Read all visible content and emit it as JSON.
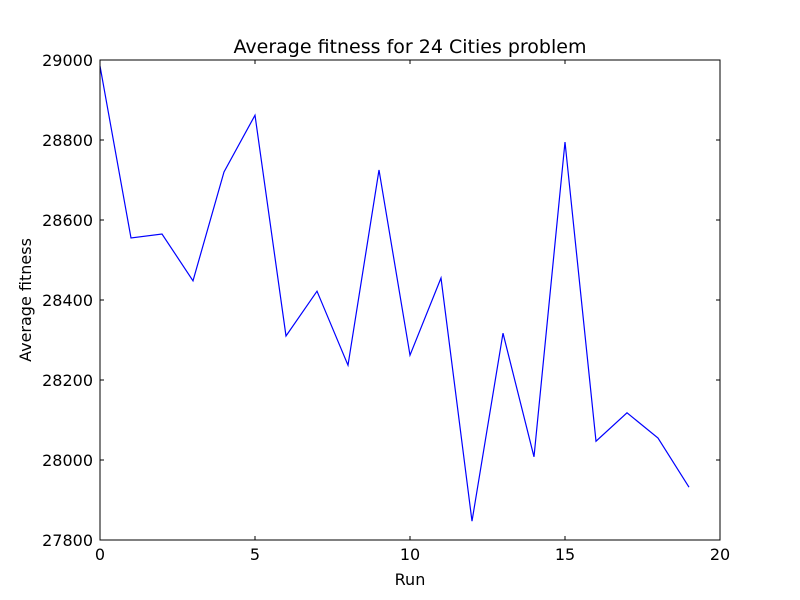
{
  "chart_data": {
    "type": "line",
    "title": "Average fitness for 24 Cities problem",
    "xlabel": "Run",
    "ylabel": "Average fitness",
    "xlim": [
      0,
      20
    ],
    "ylim": [
      27800,
      29000
    ],
    "xticks": [
      0,
      5,
      10,
      15,
      20
    ],
    "yticks": [
      27800,
      28000,
      28200,
      28400,
      28600,
      28800,
      29000
    ],
    "grid": false,
    "line_color": "#0000ff",
    "series": [
      {
        "x": [
          0,
          1,
          2,
          3,
          4,
          5,
          6,
          7,
          8,
          9,
          10,
          11,
          12,
          13,
          14,
          15,
          16,
          17,
          18,
          19
        ],
        "values": [
          28985,
          28555,
          28565,
          28448,
          28720,
          28862,
          28310,
          28422,
          28237,
          28725,
          28262,
          28455,
          27847,
          28317,
          28008,
          28795,
          28047,
          28118,
          28055,
          27932
        ]
      }
    ]
  }
}
